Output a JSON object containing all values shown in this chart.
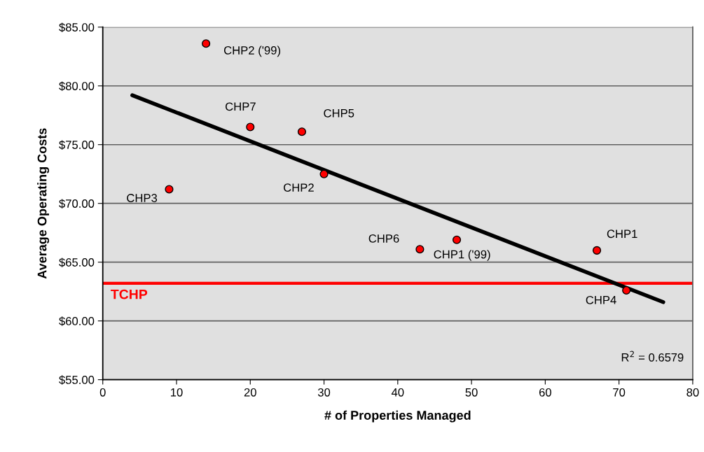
{
  "chart_data": {
    "type": "scatter",
    "xlabel": "# of Properties Managed",
    "ylabel": "Average Operating Costs",
    "series": [
      {
        "marker": "circle",
        "color": "#ff0000",
        "x": [
          14,
          20,
          27,
          30,
          9,
          43,
          48,
          67,
          71
        ],
        "values": [
          83.6,
          76.5,
          76.1,
          72.5,
          71.2,
          66.1,
          66.9,
          66.0,
          62.6
        ]
      },
      {
        "type": "line",
        "marker": "none",
        "color": "#000000",
        "x": [
          4,
          76
        ],
        "values": [
          79.2,
          61.6
        ]
      }
    ],
    "annotations": [
      {
        "text": "CHP2 ('99)",
        "x": 14,
        "y": 83.6
      },
      {
        "text": "CHP7",
        "x": 20,
        "y": 76.5
      },
      {
        "text": "CHP5",
        "x": 27,
        "y": 76.1
      },
      {
        "text": "CHP2",
        "x": 30,
        "y": 72.5
      },
      {
        "text": "CHP3",
        "x": 9,
        "y": 71.2
      },
      {
        "text": "CHP6",
        "x": 43,
        "y": 66.1
      },
      {
        "text": "CHP1 ('99)",
        "x": 48,
        "y": 66.9
      },
      {
        "text": "CHP1",
        "x": 67,
        "y": 66.0
      },
      {
        "text": "CHP4",
        "x": 71,
        "y": 62.6
      },
      "R$^{2}$ = 0.6579"
    ],
    "ref_lines": [
      {
        "axis": "y",
        "value": 63.2,
        "label": "TCHP",
        "color": "#ff0000"
      }
    ],
    "xlim": [
      0,
      80
    ],
    "xticks": [
      0,
      10,
      20,
      30,
      40,
      50,
      60,
      70,
      80
    ],
    "ylim": [
      55,
      85
    ],
    "yticks": [
      {
        "value": 55,
        "label": "$55.00"
      },
      {
        "value": 60,
        "label": "$60.00"
      },
      {
        "value": 65,
        "label": "$65.00"
      },
      {
        "value": 70,
        "label": "$70.00"
      },
      {
        "value": 75,
        "label": "$75.00"
      },
      {
        "value": 80,
        "label": "$80.00"
      },
      {
        "value": 85,
        "label": "$85.00"
      }
    ],
    "grid": "y",
    "legend": false
  }
}
